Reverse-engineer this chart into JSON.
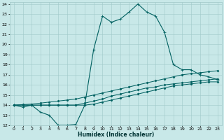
{
  "xlabel": "Humidex (Indice chaleur)",
  "xlim": [
    -0.5,
    23.5
  ],
  "ylim": [
    12,
    24.2
  ],
  "xticks": [
    0,
    1,
    2,
    3,
    4,
    5,
    6,
    7,
    8,
    9,
    10,
    11,
    12,
    13,
    14,
    15,
    16,
    17,
    18,
    19,
    20,
    21,
    22,
    23
  ],
  "yticks": [
    12,
    13,
    14,
    15,
    16,
    17,
    18,
    19,
    20,
    21,
    22,
    23,
    24
  ],
  "background_color": "#c8e8e8",
  "grid_color": "#a0c8c8",
  "line_color": "#006060",
  "series": [
    {
      "x": [
        0,
        1,
        2,
        3,
        4,
        5,
        6,
        7,
        8,
        9,
        10,
        11,
        12,
        13,
        14,
        15,
        16,
        17,
        18,
        19,
        20,
        21,
        22,
        23
      ],
      "y": [
        14,
        13.8,
        14.0,
        13.3,
        13.0,
        12.0,
        12.0,
        12.1,
        14.0,
        19.5,
        22.8,
        22.2,
        22.5,
        23.2,
        24.0,
        23.2,
        22.8,
        21.2,
        18.0,
        17.5,
        17.5,
        17.0,
        16.8,
        16.5
      ],
      "marker": "+",
      "markersize": 3,
      "linewidth": 0.8
    },
    {
      "x": [
        0,
        1,
        2,
        3,
        4,
        5,
        6,
        7,
        8,
        9,
        10,
        11,
        12,
        13,
        14,
        15,
        16,
        17,
        18,
        19,
        20,
        21,
        22,
        23
      ],
      "y": [
        14.0,
        14.05,
        14.1,
        14.2,
        14.3,
        14.4,
        14.5,
        14.6,
        14.8,
        15.0,
        15.2,
        15.4,
        15.6,
        15.8,
        16.0,
        16.2,
        16.4,
        16.6,
        16.8,
        17.0,
        17.1,
        17.2,
        17.3,
        17.4
      ],
      "marker": "D",
      "markersize": 1.5,
      "linewidth": 0.7
    },
    {
      "x": [
        0,
        1,
        2,
        3,
        4,
        5,
        6,
        7,
        8,
        9,
        10,
        11,
        12,
        13,
        14,
        15,
        16,
        17,
        18,
        19,
        20,
        21,
        22,
        23
      ],
      "y": [
        14.0,
        14.0,
        14.0,
        14.0,
        14.0,
        14.0,
        14.0,
        14.0,
        14.2,
        14.4,
        14.6,
        14.9,
        15.1,
        15.3,
        15.5,
        15.7,
        15.8,
        16.0,
        16.1,
        16.2,
        16.3,
        16.4,
        16.5,
        16.6
      ],
      "marker": "D",
      "markersize": 1.5,
      "linewidth": 0.7
    },
    {
      "x": [
        0,
        1,
        2,
        3,
        4,
        5,
        6,
        7,
        8,
        9,
        10,
        11,
        12,
        13,
        14,
        15,
        16,
        17,
        18,
        19,
        20,
        21,
        22,
        23
      ],
      "y": [
        14.0,
        14.0,
        14.0,
        14.0,
        14.0,
        14.0,
        14.0,
        14.0,
        14.0,
        14.1,
        14.3,
        14.5,
        14.7,
        14.9,
        15.1,
        15.3,
        15.5,
        15.7,
        15.9,
        16.0,
        16.1,
        16.2,
        16.3,
        16.3
      ],
      "marker": "D",
      "markersize": 1.5,
      "linewidth": 0.7
    }
  ]
}
